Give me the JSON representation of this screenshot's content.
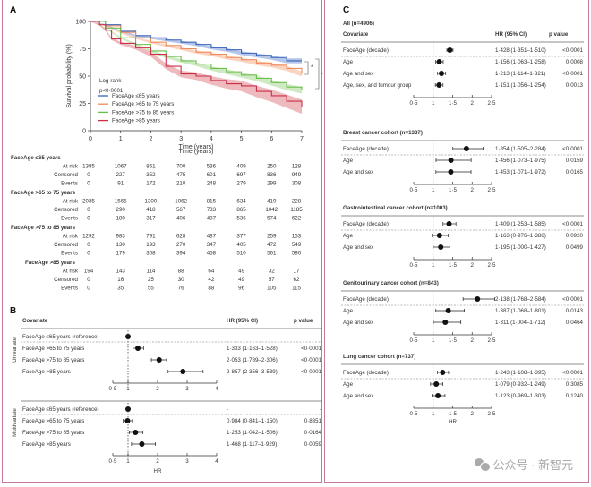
{
  "panel_labels": {
    "a": "A",
    "b": "B",
    "c": "C"
  },
  "watermark": {
    "text": "公众号 · 新智元",
    "icon": "wechat-icon"
  },
  "chart_data": [
    {
      "id": "A",
      "type": "line",
      "title": "",
      "xlabel": "Time (years)",
      "ylabel": "Survival probability (%)",
      "xlim": [
        0,
        7
      ],
      "ylim": [
        0,
        100
      ],
      "xticks": [
        "0",
        "1",
        "2",
        "3",
        "4",
        "5",
        "6",
        "7"
      ],
      "yticks": [
        "0",
        "25",
        "50",
        "75",
        "100"
      ],
      "annotation": [
        "Log-rank",
        "p<0·0001"
      ],
      "legend_position": "bottom-left",
      "series": [
        {
          "name": "FaceAge ≤65 years",
          "color": "#3a63b8",
          "band": "#9db3e3",
          "x": [
            0,
            0.5,
            1,
            1.5,
            2,
            2.5,
            3,
            3.5,
            4,
            4.5,
            5,
            5.5,
            6,
            6.5,
            7
          ],
          "y": [
            100,
            97,
            91,
            87,
            85,
            83,
            81,
            79,
            76,
            74,
            71,
            69,
            67,
            64,
            64
          ]
        },
        {
          "name": "FaceAge >65 to 75 years",
          "color": "#f08a5d",
          "band": "#f9c4aa",
          "x": [
            0,
            0.5,
            1,
            1.5,
            2,
            2.5,
            3,
            3.5,
            4,
            4.5,
            5,
            5.5,
            6,
            6.5,
            7
          ],
          "y": [
            100,
            96,
            90,
            85,
            81,
            78,
            75,
            72,
            70,
            67,
            65,
            62,
            60,
            57,
            52
          ]
        },
        {
          "name": "FaceAge >75 to 85 years",
          "color": "#6abf4b",
          "band": "#bfe3ae",
          "x": [
            0,
            0.5,
            1,
            1.5,
            2,
            2.5,
            3,
            3.5,
            4,
            4.5,
            5,
            5.5,
            6,
            6.5,
            7
          ],
          "y": [
            100,
            94,
            85,
            79,
            73,
            68,
            64,
            61,
            57,
            54,
            51,
            48,
            44,
            40,
            37
          ]
        },
        {
          "name": "FaceAge >85 years",
          "color": "#c8304a",
          "band": "#e8a3a8",
          "x": [
            0,
            0.3,
            0.5,
            0.7,
            1,
            1.5,
            2,
            2.5,
            3,
            3.5,
            4,
            4.5,
            5,
            5.5,
            6,
            6.5,
            7
          ],
          "y": [
            100,
            97,
            92,
            84,
            80,
            76,
            70,
            59,
            52,
            50,
            46,
            43,
            41,
            36,
            32,
            27,
            22
          ]
        }
      ],
      "significance_brackets": [
        "*",
        "→",
        "→"
      ]
    },
    {
      "id": "B",
      "type": "forest",
      "xlabel": "HR",
      "xticks": [
        "0·5",
        "1",
        "2",
        "3",
        "4"
      ],
      "xlim": [
        0.5,
        4
      ],
      "reference_line": 1,
      "columns": [
        "Covariate",
        "HR (95% CI)",
        "p value"
      ],
      "groups": [
        {
          "name": "Univariate",
          "rows": [
            {
              "label": "FaceAge ≤65 years (reference)",
              "hr": 1,
              "lo": null,
              "hi": null,
              "hr_text": "-",
              "p": "-"
            },
            {
              "label": "FaceAge >65 to 75 years",
              "hr": 1.333,
              "lo": 1.163,
              "hi": 1.528,
              "hr_text": "1·333 (1·163–1·528)",
              "p": "<0·0001"
            },
            {
              "label": "FaceAge >75 to 85 years",
              "hr": 2.053,
              "lo": 1.789,
              "hi": 2.306,
              "hr_text": "2·053 (1·789–2·306)",
              "p": "<0·0001"
            },
            {
              "label": "FaceAge >85 years",
              "hr": 2.857,
              "lo": 2.356,
              "hi": 3.539,
              "hr_text": "2·857 (2·356–3·539)",
              "p": "<0·0001"
            }
          ]
        },
        {
          "name": "Multivariate",
          "rows": [
            {
              "label": "FaceAge ≤65 years (reference)",
              "hr": 1,
              "lo": null,
              "hi": null,
              "hr_text": "-",
              "p": "-"
            },
            {
              "label": "FaceAge >65 to 75 years",
              "hr": 0.984,
              "lo": 0.841,
              "hi": 1.15,
              "hr_text": "0·984 (0·841–1·150)",
              "p": "0·8351"
            },
            {
              "label": "FaceAge >75 to 85 years",
              "hr": 1.253,
              "lo": 1.042,
              "hi": 1.506,
              "hr_text": "1·253 (1·042–1·506)",
              "p": "0·0164"
            },
            {
              "label": "FaceAge >85 years",
              "hr": 1.468,
              "lo": 1.117,
              "hi": 1.929,
              "hr_text": "1·468 (1·117–1·929)",
              "p": "0·0059"
            }
          ]
        }
      ]
    },
    {
      "id": "C",
      "type": "forest",
      "xlabel": "HR",
      "xticks": [
        "0·5",
        "1",
        "1·5",
        "2",
        "2·5"
      ],
      "xlim": [
        0.5,
        2.5
      ],
      "reference_line": 1,
      "columns": [
        "Covariate",
        "HR (95% CI)",
        "p value"
      ],
      "cohorts": [
        {
          "title": "All (n=4906)",
          "rows": [
            {
              "label": "FaceAge (decade)",
              "hr": 1.428,
              "lo": 1.351,
              "hi": 1.51,
              "hr_text": "1·428 (1·351–1·510)",
              "p": "<0·0001"
            },
            {
              "label": "Age",
              "hr": 1.156,
              "lo": 1.063,
              "hi": 1.258,
              "hr_text": "1·156 (1·063–1·258)",
              "p": "0·0008"
            },
            {
              "label": "Age and sex",
              "hr": 1.213,
              "lo": 1.114,
              "hi": 1.321,
              "hr_text": "1·213 (1·114–1·321)",
              "p": "<0·0001"
            },
            {
              "label": "Age, sex, and tumour group",
              "hr": 1.151,
              "lo": 1.056,
              "hi": 1.254,
              "hr_text": "1·151 (1·056–1·254)",
              "p": "0·0013"
            }
          ]
        },
        {
          "title": "Breast cancer cohort (n=1337)",
          "rows": [
            {
              "label": "FaceAge (decade)",
              "hr": 1.854,
              "lo": 1.505,
              "hi": 2.284,
              "hr_text": "1·854 (1·505–2·284)",
              "p": "<0·0001"
            },
            {
              "label": "Age",
              "hr": 1.456,
              "lo": 1.073,
              "hi": 1.975,
              "hr_text": "1·456 (1·073–1·975)",
              "p": "0·0159"
            },
            {
              "label": "Age and sex",
              "hr": 1.453,
              "lo": 1.071,
              "hi": 1.972,
              "hr_text": "1·453 (1·071–1·972)",
              "p": "0·0165"
            }
          ]
        },
        {
          "title": "Gastrointestinal cancer cohort (n=1003)",
          "rows": [
            {
              "label": "FaceAge (decade)",
              "hr": 1.409,
              "lo": 1.253,
              "hi": 1.585,
              "hr_text": "1·409 (1·253–1·585)",
              "p": "<0·0001"
            },
            {
              "label": "Age",
              "hr": 1.163,
              "lo": 0.976,
              "hi": 1.386,
              "hr_text": "1·163 (0·976–1·386)",
              "p": "0·0920"
            },
            {
              "label": "Age and sex",
              "hr": 1.195,
              "lo": 1.0,
              "hi": 1.427,
              "hr_text": "1·195 (1·000–1·427)",
              "p": "0·0499"
            }
          ]
        },
        {
          "title": "Genitourinary cancer cohort (n=843)",
          "rows": [
            {
              "label": "FaceAge (decade)",
              "hr": 2.138,
              "lo": 1.768,
              "hi": 2.584,
              "hr_text": "2·138 (1·768–2·584)",
              "p": "<0·0001"
            },
            {
              "label": "Age",
              "hr": 1.387,
              "lo": 1.068,
              "hi": 1.801,
              "hr_text": "1·387 (1·068–1·801)",
              "p": "0·0143"
            },
            {
              "label": "Age and sex",
              "hr": 1.311,
              "lo": 1.004,
              "hi": 1.712,
              "hr_text": "1·311 (1·004–1·712)",
              "p": "0·0464"
            }
          ]
        },
        {
          "title": "Lung cancer cohort (n=737)",
          "rows": [
            {
              "label": "FaceAge (decade)",
              "hr": 1.243,
              "lo": 1.108,
              "hi": 1.395,
              "hr_text": "1·243 (1·108–1·395)",
              "p": "<0·0001"
            },
            {
              "label": "Age",
              "hr": 1.079,
              "lo": 0.932,
              "hi": 1.249,
              "hr_text": "1·079 (0·932–1·249)",
              "p": "0·3085"
            },
            {
              "label": "Age and sex",
              "hr": 1.123,
              "lo": 0.969,
              "hi": 1.303,
              "hr_text": "1·123 (0·969–1·303)",
              "p": "0·1240"
            }
          ]
        }
      ]
    },
    {
      "id": "A-risk-table",
      "type": "table",
      "header": "Time (years)",
      "times": [
        0,
        1,
        2,
        3,
        4,
        5,
        6,
        7
      ],
      "groups": [
        {
          "name": "FaceAge ≤65 years",
          "rows": [
            {
              "label": "At risk",
              "values": [
                1385,
                1067,
                861,
                700,
                536,
                409,
                250,
                128
              ]
            },
            {
              "label": "Censored",
              "values": [
                0,
                227,
                352,
                475,
                601,
                697,
                836,
                949
              ]
            },
            {
              "label": "Events",
              "values": [
                0,
                91,
                172,
                210,
                248,
                279,
                299,
                308
              ]
            }
          ]
        },
        {
          "name": "FaceAge >65 to 75 years",
          "rows": [
            {
              "label": "At risk",
              "values": [
                2035,
                1565,
                1300,
                1062,
                815,
                634,
                419,
                228
              ]
            },
            {
              "label": "Censored",
              "values": [
                0,
                290,
                418,
                567,
                733,
                865,
                1042,
                1185
              ]
            },
            {
              "label": "Events",
              "values": [
                0,
                180,
                317,
                406,
                487,
                536,
                574,
                622
              ]
            }
          ]
        },
        {
          "name": "FaceAge >75 to 85 years",
          "rows": [
            {
              "label": "At risk",
              "values": [
                1292,
                983,
                791,
                628,
                487,
                377,
                259,
                153
              ]
            },
            {
              "label": "Censored",
              "values": [
                0,
                130,
                193,
                270,
                347,
                405,
                472,
                549
              ]
            },
            {
              "label": "Events",
              "values": [
                0,
                179,
                308,
                394,
                458,
                510,
                561,
                590
              ]
            }
          ]
        },
        {
          "name": "FaceAge >85 years",
          "rows": [
            {
              "label": "At risk",
              "values": [
                194,
                143,
                114,
                88,
                64,
                49,
                32,
                17
              ]
            },
            {
              "label": "Censored",
              "values": [
                0,
                16,
                25,
                30,
                42,
                49,
                57,
                62
              ]
            },
            {
              "label": "Events",
              "values": [
                0,
                35,
                55,
                76,
                88,
                96,
                105,
                115
              ]
            }
          ]
        }
      ]
    }
  ]
}
